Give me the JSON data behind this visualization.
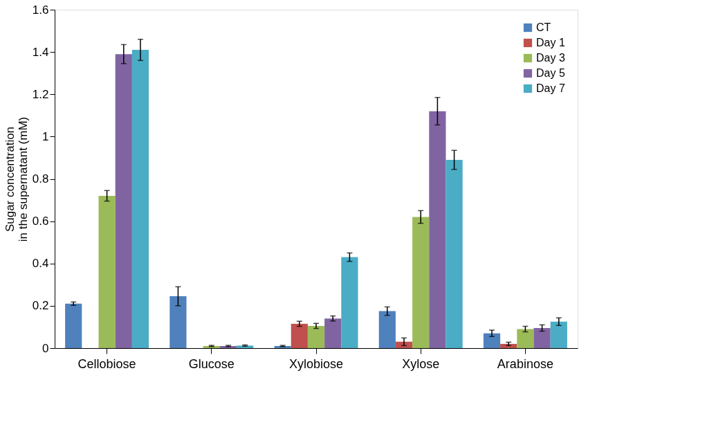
{
  "chart_data": {
    "type": "bar",
    "ylabel": [
      "Sugar concentration",
      "in the supernatant (mM)"
    ],
    "categories": [
      "Cellobiose",
      "Glucose",
      "Xylobiose",
      "Xylose",
      "Arabinose"
    ],
    "series": [
      {
        "name": "CT",
        "color": "#4f81bd",
        "values": [
          0.21,
          0.245,
          0.01,
          0.175,
          0.07
        ],
        "errors": [
          0.008,
          0.045,
          0.003,
          0.02,
          0.015
        ]
      },
      {
        "name": "Day 1",
        "color": "#c0504d",
        "values": [
          null,
          null,
          0.115,
          0.03,
          0.02
        ],
        "errors": [
          null,
          null,
          0.012,
          0.018,
          0.008
        ]
      },
      {
        "name": "Day 3",
        "color": "#9bbb59",
        "values": [
          0.72,
          0.01,
          0.105,
          0.62,
          0.09
        ],
        "errors": [
          0.025,
          0.003,
          0.012,
          0.03,
          0.013
        ]
      },
      {
        "name": "Day 5",
        "color": "#8064a2",
        "values": [
          1.39,
          0.01,
          0.14,
          1.12,
          0.095
        ],
        "errors": [
          0.045,
          0.003,
          0.012,
          0.065,
          0.015
        ]
      },
      {
        "name": "Day 7",
        "color": "#4bacc6",
        "values": [
          1.41,
          0.012,
          0.43,
          0.89,
          0.125
        ],
        "errors": [
          0.05,
          0.003,
          0.02,
          0.045,
          0.018
        ]
      }
    ],
    "ylim": [
      0,
      1.6
    ],
    "yticks": [
      0,
      0.2,
      0.4,
      0.6,
      0.8,
      1,
      1.2,
      1.4,
      1.6
    ],
    "grid": false,
    "legend": "top right"
  }
}
